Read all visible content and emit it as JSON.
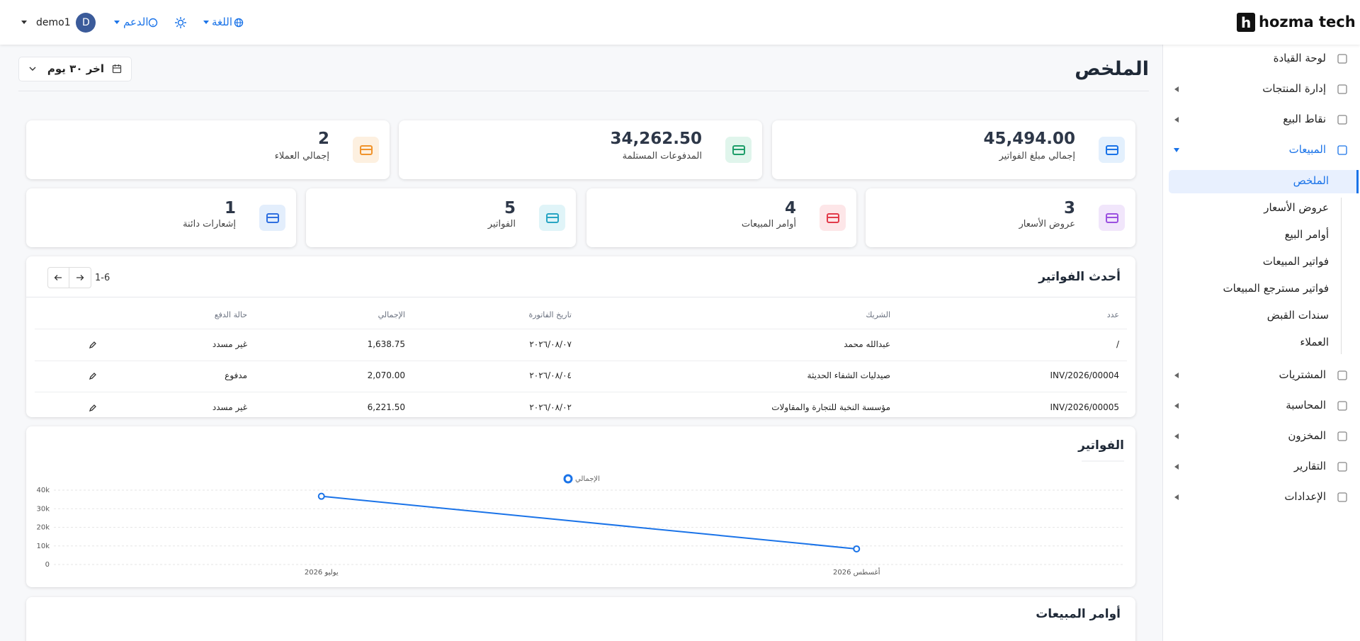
{
  "header": {
    "logo_mark": "h",
    "logo": "hozma tech",
    "user": "demo1",
    "avatar": "D",
    "support": "الدعم",
    "language": "اللغة"
  },
  "sidebar": {
    "top": [
      "لوحة القيادة",
      "إدارة المنتجات",
      "نقاط البيع",
      "المبيعات"
    ],
    "submenu": [
      "الملخص",
      "عروض الأسعار",
      "أوامر البيع",
      "فواتير المبيعات",
      "فواتير مسترجع المبيعات",
      "سندات القبض",
      "العملاء"
    ],
    "bottom": [
      "المشتريات",
      "المحاسبة",
      "المخزون",
      "التقارير",
      "الإعدادات"
    ]
  },
  "page": {
    "title": "الملخص",
    "period": "اخر ٣٠ يوم"
  },
  "kpis": [
    {
      "value": "45,494.00",
      "label": "إجمالي مبلغ الفواتير"
    },
    {
      "value": "34,262.50",
      "label": "المدفوعات المستلمة"
    },
    {
      "value": "2",
      "label": "إجمالي العملاء"
    },
    {
      "value": "3",
      "label": "عروض الأسعار"
    },
    {
      "value": "4",
      "label": "أوامر المبيعات"
    },
    {
      "value": "5",
      "label": "الفواتير"
    },
    {
      "value": "1",
      "label": "إشعارات دائنة"
    }
  ],
  "table": {
    "title": "أحدث الفواتير",
    "range": "1-6",
    "columns": [
      "عدد",
      "الشريك",
      "تاريخ الفاتورة",
      "الإجمالي",
      "حالة الدفع"
    ],
    "rows": [
      [
        "/",
        "عبدالله محمد",
        "٢٠٢٦/٠٨/٠٧",
        "1,638.75",
        "غير مسدد"
      ],
      [
        "INV/2026/00004",
        "صيدليات الشفاء الحديثة",
        "٢٠٢٦/٠٨/٠٤",
        "2,070.00",
        "مدفوع"
      ],
      [
        "INV/2026/00005",
        "مؤسسة النخبة للتجارة والمقاولات",
        "٢٠٢٦/٠٨/٠٢",
        "6,221.50",
        "غير مسدد"
      ]
    ]
  },
  "chart_data": {
    "type": "line",
    "title": "الفواتير",
    "categories": [
      "يوليو 2026",
      "أغسطس 2026"
    ],
    "series": [
      {
        "name": "الإجمالي",
        "color": "#1a73e8",
        "values": [
          36700,
          8400
        ]
      }
    ],
    "ylim": [
      0,
      40000
    ],
    "yticks": [
      0,
      {
        "value": 10000,
        "label": "10k"
      },
      {
        "value": 20000,
        "label": "20k"
      },
      {
        "value": 30000,
        "label": "30k"
      },
      {
        "value": 40000,
        "label": "40k"
      }
    ],
    "grid": true
  },
  "next_section": {
    "title": "أوامر المبيعات"
  }
}
